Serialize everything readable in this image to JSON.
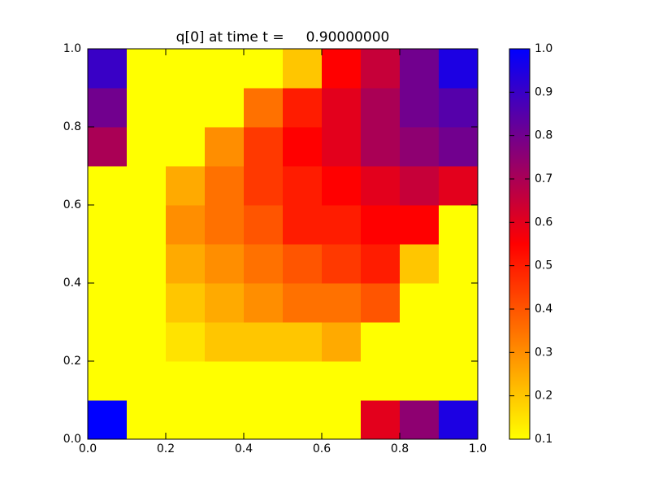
{
  "chart_data": {
    "type": "heatmap",
    "title": "q[0] at time t =     0.90000000",
    "xlim": [
      0,
      1
    ],
    "ylim": [
      0,
      1
    ],
    "xticks": [
      {
        "value": 0,
        "label": "0.0"
      },
      0.2,
      0.4,
      0.6,
      0.8,
      {
        "value": 1,
        "label": "1.0"
      }
    ],
    "yticks": [
      {
        "value": 0,
        "label": "0.0"
      },
      0.2,
      0.4,
      0.6,
      0.8,
      {
        "value": 1,
        "label": "1.0"
      }
    ],
    "z": [
      [
        1.0,
        0.1,
        0.1,
        0.1,
        0.1,
        0.1,
        0.1,
        0.6,
        0.75,
        0.95
      ],
      [
        0.1,
        0.1,
        0.1,
        0.1,
        0.1,
        0.1,
        0.1,
        0.1,
        0.1,
        0.1
      ],
      [
        0.1,
        0.1,
        0.15,
        0.2,
        0.2,
        0.2,
        0.25,
        0.1,
        0.1,
        0.1
      ],
      [
        0.1,
        0.1,
        0.2,
        0.25,
        0.3,
        0.35,
        0.35,
        0.4,
        0.1,
        0.1
      ],
      [
        0.1,
        0.1,
        0.25,
        0.3,
        0.35,
        0.4,
        0.45,
        0.5,
        0.2,
        0.1
      ],
      [
        0.1,
        0.1,
        0.3,
        0.35,
        0.4,
        0.5,
        0.5,
        0.55,
        0.55,
        0.1
      ],
      [
        0.1,
        0.1,
        0.25,
        0.35,
        0.45,
        0.5,
        0.55,
        0.6,
        0.65,
        0.6
      ],
      [
        0.7,
        0.1,
        0.1,
        0.3,
        0.45,
        0.55,
        0.6,
        0.7,
        0.75,
        0.8
      ],
      [
        0.8,
        0.1,
        0.1,
        0.1,
        0.35,
        0.5,
        0.6,
        0.7,
        0.8,
        0.85
      ],
      [
        0.9,
        0.1,
        0.1,
        0.1,
        0.1,
        0.2,
        0.55,
        0.65,
        0.8,
        0.95
      ]
    ],
    "colormap": [
      [
        0.1,
        "#ffff00"
      ],
      [
        0.55,
        "#ff0000"
      ],
      [
        1.0,
        "#0000ff"
      ]
    ],
    "clim": [
      0.1,
      1.0
    ],
    "cticks": [
      0.1,
      0.2,
      0.3,
      0.4,
      0.5,
      0.6,
      0.7,
      0.8,
      0.9,
      {
        "value": 1,
        "label": "1.0"
      }
    ]
  }
}
